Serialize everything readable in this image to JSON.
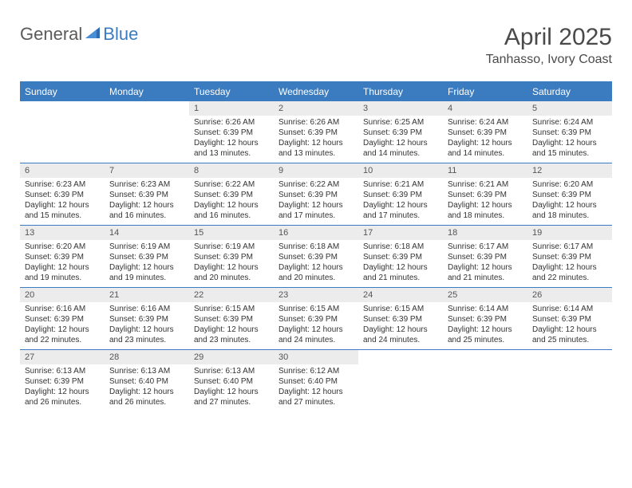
{
  "logo": {
    "general": "General",
    "blue": "Blue"
  },
  "title": "April 2025",
  "location": "Tanhasso, Ivory Coast",
  "colors": {
    "header_bg": "#3b7bbf",
    "header_text": "#ffffff",
    "daynum_bg": "#ececec",
    "text": "#333333",
    "logo_gray": "#5a5a5a",
    "logo_blue": "#3b7bbf"
  },
  "weekdays": [
    "Sunday",
    "Monday",
    "Tuesday",
    "Wednesday",
    "Thursday",
    "Friday",
    "Saturday"
  ],
  "first_weekday_index": 2,
  "days": [
    {
      "n": 1,
      "sunrise": "6:26 AM",
      "sunset": "6:39 PM",
      "daylight": "12 hours and 13 minutes."
    },
    {
      "n": 2,
      "sunrise": "6:26 AM",
      "sunset": "6:39 PM",
      "daylight": "12 hours and 13 minutes."
    },
    {
      "n": 3,
      "sunrise": "6:25 AM",
      "sunset": "6:39 PM",
      "daylight": "12 hours and 14 minutes."
    },
    {
      "n": 4,
      "sunrise": "6:24 AM",
      "sunset": "6:39 PM",
      "daylight": "12 hours and 14 minutes."
    },
    {
      "n": 5,
      "sunrise": "6:24 AM",
      "sunset": "6:39 PM",
      "daylight": "12 hours and 15 minutes."
    },
    {
      "n": 6,
      "sunrise": "6:23 AM",
      "sunset": "6:39 PM",
      "daylight": "12 hours and 15 minutes."
    },
    {
      "n": 7,
      "sunrise": "6:23 AM",
      "sunset": "6:39 PM",
      "daylight": "12 hours and 16 minutes."
    },
    {
      "n": 8,
      "sunrise": "6:22 AM",
      "sunset": "6:39 PM",
      "daylight": "12 hours and 16 minutes."
    },
    {
      "n": 9,
      "sunrise": "6:22 AM",
      "sunset": "6:39 PM",
      "daylight": "12 hours and 17 minutes."
    },
    {
      "n": 10,
      "sunrise": "6:21 AM",
      "sunset": "6:39 PM",
      "daylight": "12 hours and 17 minutes."
    },
    {
      "n": 11,
      "sunrise": "6:21 AM",
      "sunset": "6:39 PM",
      "daylight": "12 hours and 18 minutes."
    },
    {
      "n": 12,
      "sunrise": "6:20 AM",
      "sunset": "6:39 PM",
      "daylight": "12 hours and 18 minutes."
    },
    {
      "n": 13,
      "sunrise": "6:20 AM",
      "sunset": "6:39 PM",
      "daylight": "12 hours and 19 minutes."
    },
    {
      "n": 14,
      "sunrise": "6:19 AM",
      "sunset": "6:39 PM",
      "daylight": "12 hours and 19 minutes."
    },
    {
      "n": 15,
      "sunrise": "6:19 AM",
      "sunset": "6:39 PM",
      "daylight": "12 hours and 20 minutes."
    },
    {
      "n": 16,
      "sunrise": "6:18 AM",
      "sunset": "6:39 PM",
      "daylight": "12 hours and 20 minutes."
    },
    {
      "n": 17,
      "sunrise": "6:18 AM",
      "sunset": "6:39 PM",
      "daylight": "12 hours and 21 minutes."
    },
    {
      "n": 18,
      "sunrise": "6:17 AM",
      "sunset": "6:39 PM",
      "daylight": "12 hours and 21 minutes."
    },
    {
      "n": 19,
      "sunrise": "6:17 AM",
      "sunset": "6:39 PM",
      "daylight": "12 hours and 22 minutes."
    },
    {
      "n": 20,
      "sunrise": "6:16 AM",
      "sunset": "6:39 PM",
      "daylight": "12 hours and 22 minutes."
    },
    {
      "n": 21,
      "sunrise": "6:16 AM",
      "sunset": "6:39 PM",
      "daylight": "12 hours and 23 minutes."
    },
    {
      "n": 22,
      "sunrise": "6:15 AM",
      "sunset": "6:39 PM",
      "daylight": "12 hours and 23 minutes."
    },
    {
      "n": 23,
      "sunrise": "6:15 AM",
      "sunset": "6:39 PM",
      "daylight": "12 hours and 24 minutes."
    },
    {
      "n": 24,
      "sunrise": "6:15 AM",
      "sunset": "6:39 PM",
      "daylight": "12 hours and 24 minutes."
    },
    {
      "n": 25,
      "sunrise": "6:14 AM",
      "sunset": "6:39 PM",
      "daylight": "12 hours and 25 minutes."
    },
    {
      "n": 26,
      "sunrise": "6:14 AM",
      "sunset": "6:39 PM",
      "daylight": "12 hours and 25 minutes."
    },
    {
      "n": 27,
      "sunrise": "6:13 AM",
      "sunset": "6:39 PM",
      "daylight": "12 hours and 26 minutes."
    },
    {
      "n": 28,
      "sunrise": "6:13 AM",
      "sunset": "6:40 PM",
      "daylight": "12 hours and 26 minutes."
    },
    {
      "n": 29,
      "sunrise": "6:13 AM",
      "sunset": "6:40 PM",
      "daylight": "12 hours and 27 minutes."
    },
    {
      "n": 30,
      "sunrise": "6:12 AM",
      "sunset": "6:40 PM",
      "daylight": "12 hours and 27 minutes."
    }
  ],
  "labels": {
    "sunrise": "Sunrise:",
    "sunset": "Sunset:",
    "daylight": "Daylight:"
  }
}
